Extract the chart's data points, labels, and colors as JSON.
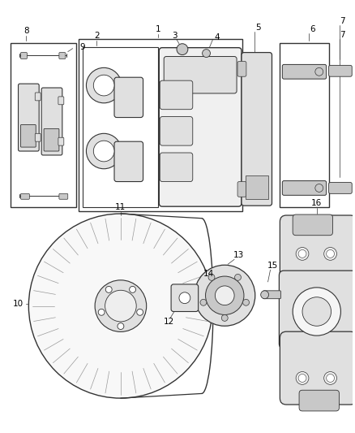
{
  "bg_color": "#ffffff",
  "line_color": "#333333",
  "gray1": "#c8c8c8",
  "gray2": "#e0e0e0",
  "gray3": "#a8a8a8",
  "gray4": "#f0f0f0",
  "figsize": [
    4.38,
    5.33
  ],
  "dpi": 100
}
